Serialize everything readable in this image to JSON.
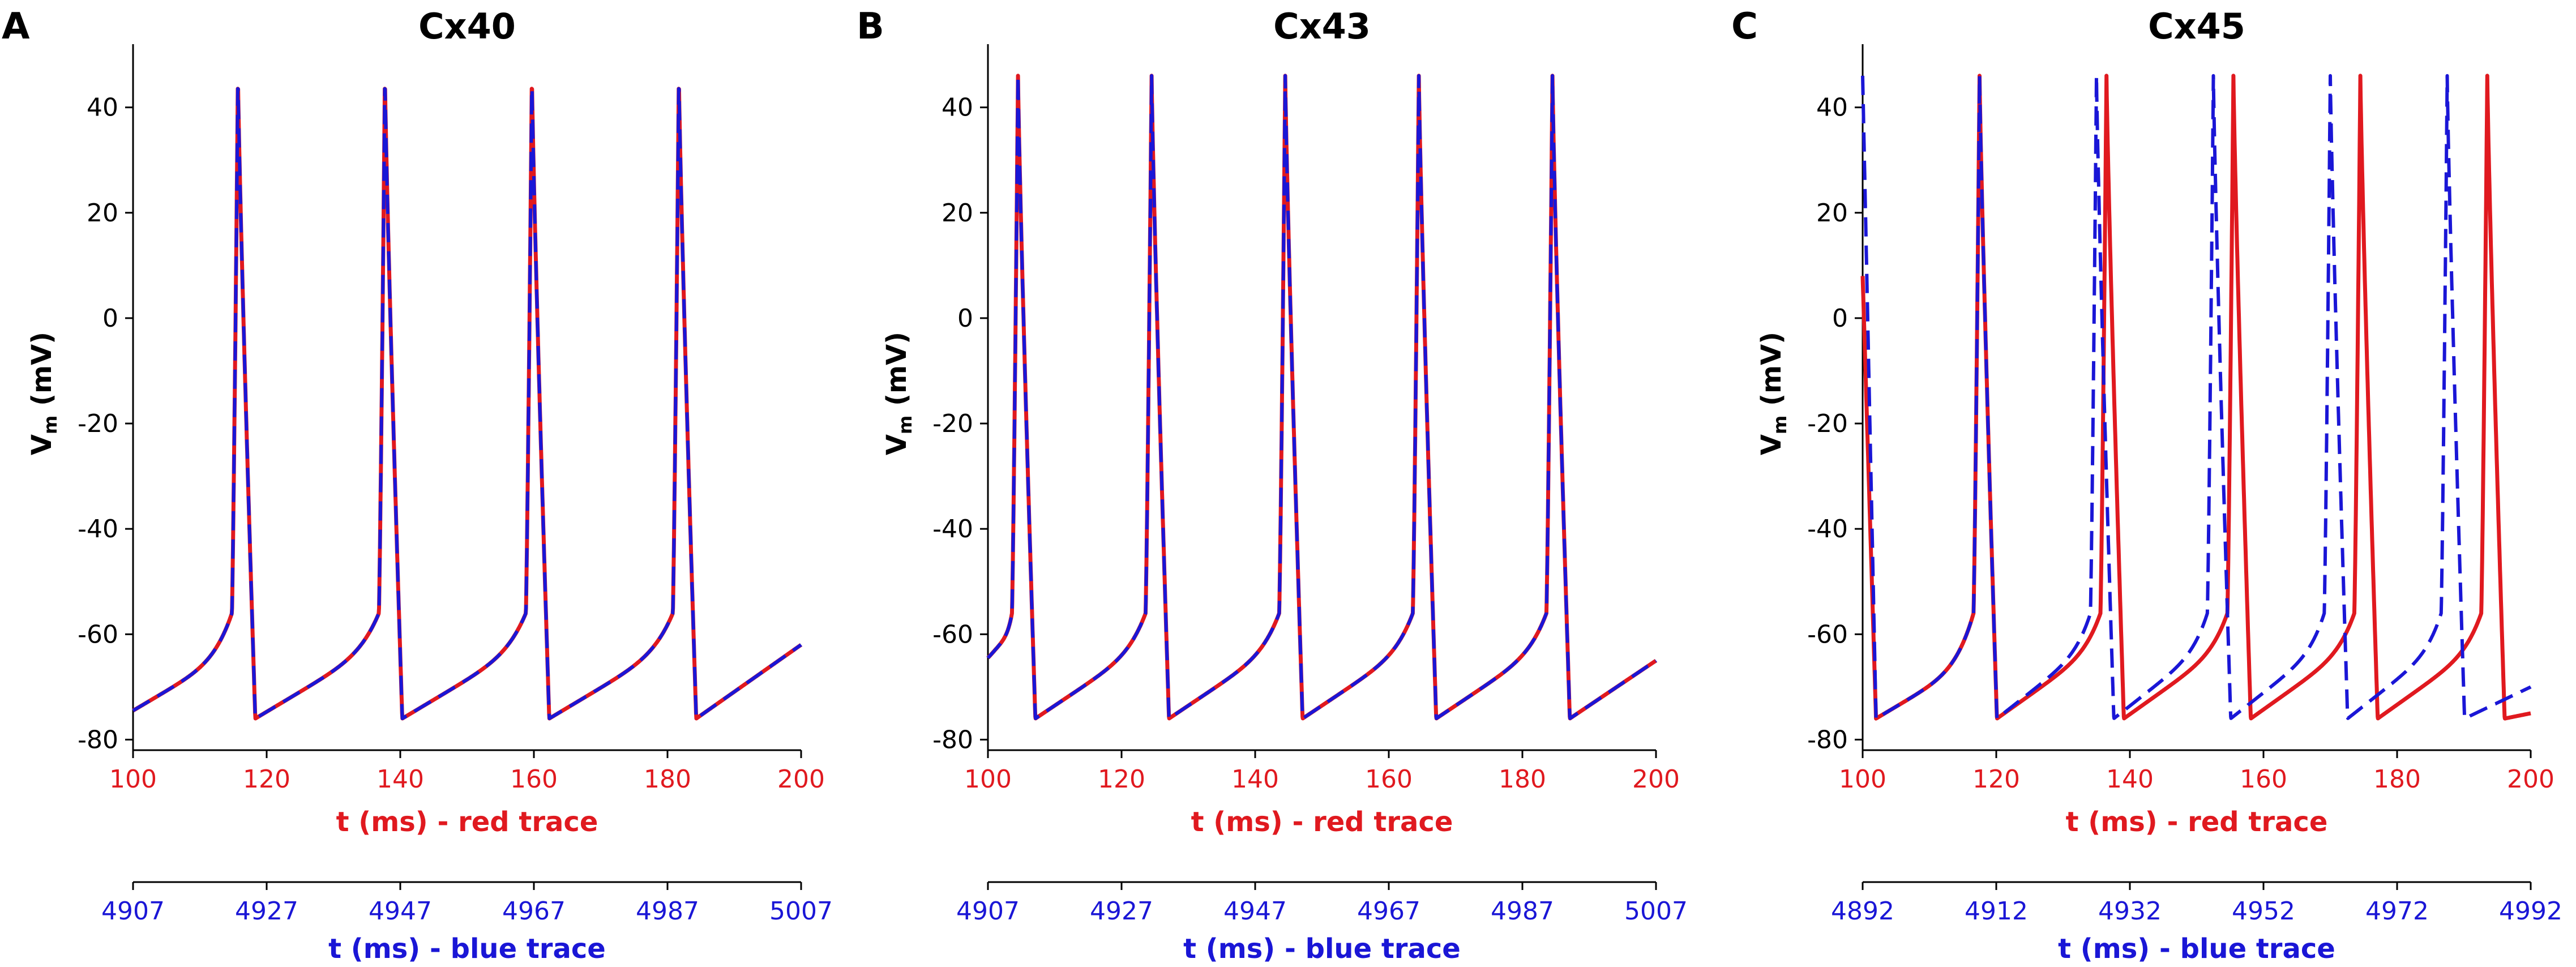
{
  "colors": {
    "red": "#e0191f",
    "blue": "#1a16d6",
    "axis": "#000000"
  },
  "chart_data": [
    {
      "type": "line",
      "panel_label": "A",
      "title": "Cx40",
      "ylabel_main": "V",
      "ylabel_sub": "m",
      "ylabel_unit": " (mV)",
      "ylim": [
        -82,
        52
      ],
      "yticks": [
        -80,
        -60,
        -40,
        -20,
        0,
        20,
        40
      ],
      "red_axis": {
        "label": "t (ms) - red trace",
        "range": [
          100,
          200
        ],
        "ticks": [
          100,
          120,
          140,
          160,
          180,
          200
        ]
      },
      "blue_axis": {
        "label": "t (ms) - blue trace",
        "range": [
          4907,
          5007
        ],
        "ticks": [
          4907,
          4927,
          4947,
          4967,
          4987,
          5007
        ]
      },
      "series": [
        {
          "name": "red trace",
          "color": "red",
          "style": "solid",
          "start_v": -74.5,
          "end_v": -62,
          "spike_times": [
            115.7,
            137.7,
            159.7,
            181.7
          ],
          "peak": 46,
          "min": -76
        },
        {
          "name": "blue trace",
          "color": "blue",
          "style": "dashed",
          "start_v": -74.5,
          "end_v": -62,
          "spike_times": [
            115.7,
            137.7,
            159.7,
            181.7
          ],
          "peak": 46,
          "min": -76
        }
      ]
    },
    {
      "type": "line",
      "panel_label": "B",
      "title": "Cx43",
      "ylabel_main": "V",
      "ylabel_sub": "m",
      "ylabel_unit": " (mV)",
      "ylim": [
        -82,
        52
      ],
      "yticks": [
        -80,
        -60,
        -40,
        -20,
        0,
        20,
        40
      ],
      "red_axis": {
        "label": "t (ms) - red trace",
        "range": [
          100,
          200
        ],
        "ticks": [
          100,
          120,
          140,
          160,
          180,
          200
        ]
      },
      "blue_axis": {
        "label": "t (ms) - blue trace",
        "range": [
          4907,
          5007
        ],
        "ticks": [
          4907,
          4927,
          4947,
          4967,
          4987,
          5007
        ]
      },
      "series": [
        {
          "name": "red trace",
          "color": "red",
          "style": "solid",
          "start_v": -64.5,
          "end_v": -65,
          "spike_times": [
            104.5,
            124.5,
            144.5,
            164.5,
            184.5
          ],
          "peak": 46,
          "min": -76
        },
        {
          "name": "blue trace",
          "color": "blue",
          "style": "dashed",
          "start_v": -64.5,
          "end_v": -65,
          "spike_times": [
            104.5,
            124.5,
            144.5,
            164.5,
            184.5
          ],
          "peak": 46,
          "min": -76
        }
      ]
    },
    {
      "type": "line",
      "panel_label": "C",
      "title": "Cx45",
      "ylabel_main": "V",
      "ylabel_sub": "m",
      "ylabel_unit": " (mV)",
      "ylim": [
        -82,
        52
      ],
      "yticks": [
        -80,
        -60,
        -40,
        -20,
        0,
        20,
        40
      ],
      "red_axis": {
        "label": "t (ms) - red trace",
        "range": [
          100,
          200
        ],
        "ticks": [
          100,
          120,
          140,
          160,
          180,
          200
        ]
      },
      "blue_axis": {
        "label": "t (ms) - blue trace",
        "range": [
          4892,
          4992
        ],
        "ticks": [
          4892,
          4912,
          4932,
          4952,
          4972,
          4992
        ]
      },
      "series": [
        {
          "name": "red trace",
          "color": "red",
          "style": "solid",
          "start_v": 8,
          "end_v": -75,
          "spike_times": [
            117.5,
            136.5,
            155.5,
            174.5,
            193.5
          ],
          "peak": 46,
          "min": -76
        },
        {
          "name": "blue trace",
          "color": "blue",
          "style": "dashed",
          "start_v": 46,
          "end_v": -70,
          "spike_times": [
            117.5,
            135,
            152.5,
            170,
            187.5
          ],
          "peak": 46,
          "min": -76
        }
      ]
    }
  ]
}
